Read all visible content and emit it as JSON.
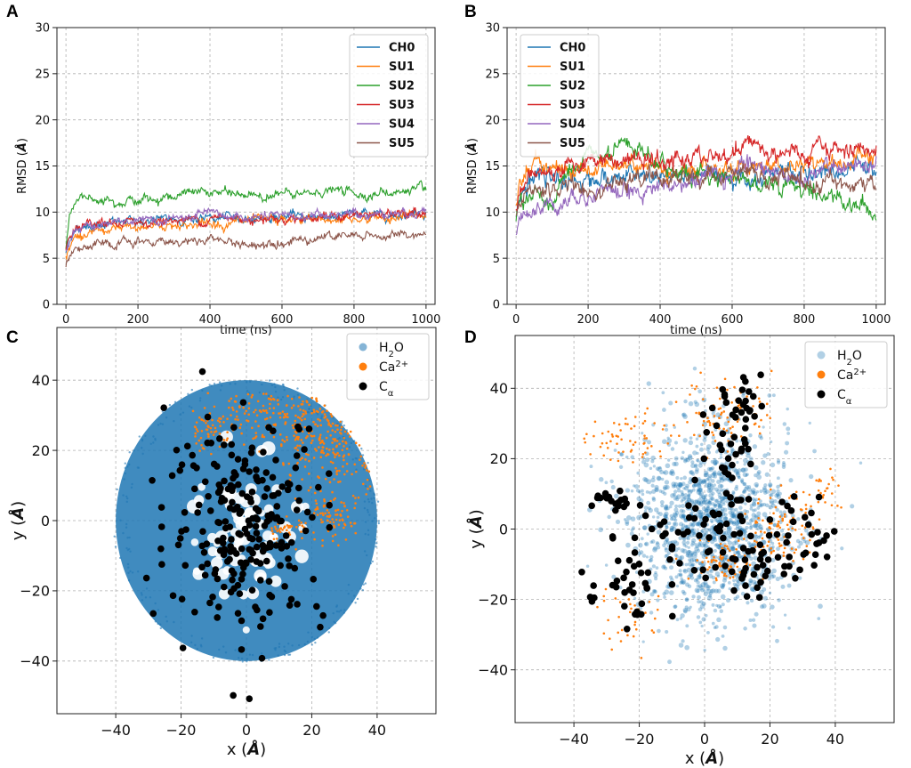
{
  "chart_data": [
    {
      "panel": "A",
      "type": "line",
      "title": "",
      "xlabel": "time (ns)",
      "ylabel": "RMSD (Å)",
      "ylabel_parts": [
        "RMSD (",
        "Å",
        ")"
      ],
      "xlim": [
        -25,
        1025
      ],
      "ylim": [
        0,
        30
      ],
      "xticks": [
        0,
        200,
        400,
        600,
        800,
        1000
      ],
      "yticks": [
        0,
        5,
        10,
        15,
        20,
        25,
        30
      ],
      "legend_position": "top-right",
      "x": [
        0,
        10,
        25,
        50,
        100,
        150,
        200,
        250,
        300,
        350,
        400,
        450,
        500,
        550,
        600,
        650,
        700,
        750,
        800,
        850,
        900,
        950,
        1000
      ],
      "series": [
        {
          "name": "CH0",
          "color": "#1f77b4",
          "values": [
            5.5,
            7.5,
            8.0,
            8.5,
            8.8,
            8.9,
            9.0,
            9.1,
            9.2,
            9.3,
            9.3,
            9.3,
            9.4,
            9.4,
            9.5,
            9.5,
            9.6,
            9.6,
            9.7,
            9.8,
            9.8,
            9.9,
            10.0
          ]
        },
        {
          "name": "SU1",
          "color": "#ff7f0e",
          "values": [
            5.0,
            6.5,
            7.2,
            7.5,
            7.8,
            8.1,
            8.3,
            8.5,
            8.6,
            8.7,
            8.8,
            8.8,
            8.9,
            9.0,
            9.0,
            9.1,
            9.2,
            9.2,
            9.3,
            9.4,
            9.4,
            9.5,
            9.5
          ]
        },
        {
          "name": "SU2",
          "color": "#2ca02c",
          "values": [
            6.5,
            10.0,
            11.0,
            11.5,
            11.6,
            11.4,
            11.2,
            11.5,
            11.8,
            12.0,
            12.2,
            12.0,
            11.8,
            11.9,
            12.0,
            11.7,
            12.2,
            12.4,
            12.0,
            11.9,
            12.1,
            12.3,
            12.4
          ]
        },
        {
          "name": "SU3",
          "color": "#d62728",
          "values": [
            5.5,
            7.0,
            7.8,
            8.3,
            8.6,
            8.8,
            8.9,
            9.0,
            9.1,
            9.2,
            9.3,
            9.3,
            9.3,
            9.4,
            9.3,
            9.4,
            9.5,
            9.5,
            9.6,
            9.6,
            9.7,
            9.8,
            9.8
          ]
        },
        {
          "name": "SU4",
          "color": "#9467bd",
          "values": [
            5.8,
            7.2,
            8.0,
            8.5,
            8.7,
            8.8,
            8.9,
            9.1,
            9.2,
            9.4,
            9.6,
            9.5,
            9.4,
            9.4,
            9.5,
            9.5,
            9.6,
            9.7,
            9.8,
            9.9,
            9.9,
            10.0,
            10.2
          ]
        },
        {
          "name": "SU5",
          "color": "#8c564b",
          "values": [
            4.2,
            5.5,
            5.9,
            6.1,
            6.3,
            6.5,
            6.6,
            6.7,
            6.9,
            6.9,
            7.0,
            6.9,
            6.3,
            6.6,
            7.0,
            7.1,
            7.3,
            7.4,
            7.3,
            7.4,
            7.4,
            7.5,
            7.6
          ]
        }
      ]
    },
    {
      "panel": "B",
      "type": "line",
      "title": "",
      "xlabel": "time (ns)",
      "ylabel": "RMSD (Å)",
      "ylabel_parts": [
        "RMSD (",
        "Å",
        ")"
      ],
      "xlim": [
        -25,
        1025
      ],
      "ylim": [
        0,
        30
      ],
      "xticks": [
        0,
        200,
        400,
        600,
        800,
        1000
      ],
      "yticks": [
        0,
        5,
        10,
        15,
        20,
        25,
        30
      ],
      "legend_position": "top-left",
      "x": [
        0,
        10,
        25,
        50,
        100,
        150,
        200,
        250,
        300,
        350,
        400,
        450,
        500,
        550,
        600,
        650,
        700,
        750,
        800,
        850,
        900,
        950,
        1000
      ],
      "series": [
        {
          "name": "CH0",
          "color": "#1f77b4",
          "values": [
            10.0,
            11.8,
            12.8,
            13.3,
            13.4,
            13.5,
            13.6,
            13.7,
            13.7,
            13.8,
            13.8,
            13.9,
            13.9,
            13.9,
            14.0,
            14.0,
            14.1,
            14.1,
            14.2,
            14.2,
            14.3,
            14.3,
            14.5
          ]
        },
        {
          "name": "SU1",
          "color": "#ff7f0e",
          "values": [
            10.0,
            13.0,
            14.5,
            15.5,
            15.0,
            14.5,
            14.5,
            15.0,
            15.5,
            15.2,
            14.8,
            14.6,
            14.7,
            14.8,
            14.9,
            15.0,
            15.0,
            15.1,
            15.2,
            15.3,
            15.4,
            15.6,
            15.8
          ]
        },
        {
          "name": "SU2",
          "color": "#2ca02c",
          "values": [
            9.5,
            11.5,
            11.0,
            11.5,
            11.0,
            14.5,
            15.5,
            16.0,
            17.0,
            16.0,
            15.0,
            14.5,
            14.3,
            14.0,
            13.8,
            13.5,
            13.3,
            13.0,
            12.5,
            12.0,
            11.5,
            11.0,
            10.2
          ]
        },
        {
          "name": "SU3",
          "color": "#d62728",
          "values": [
            10.0,
            11.5,
            13.0,
            14.0,
            14.5,
            15.5,
            15.6,
            15.5,
            15.5,
            15.8,
            15.2,
            15.5,
            15.8,
            16.0,
            16.2,
            18.0,
            16.5,
            16.3,
            16.0,
            16.5,
            16.8,
            17.0,
            17.2
          ]
        },
        {
          "name": "SU4",
          "color": "#9467bd",
          "values": [
            7.5,
            8.5,
            9.5,
            10.5,
            11.0,
            11.5,
            12.0,
            12.3,
            12.5,
            12.5,
            12.8,
            13.0,
            13.5,
            14.2,
            14.5,
            14.6,
            14.2,
            14.0,
            14.3,
            14.3,
            14.4,
            14.6,
            14.6
          ]
        },
        {
          "name": "SU5",
          "color": "#8c564b",
          "values": [
            9.5,
            10.5,
            11.5,
            12.0,
            12.5,
            12.8,
            13.0,
            13.2,
            13.4,
            13.5,
            13.6,
            13.7,
            13.8,
            13.8,
            13.9,
            13.9,
            13.8,
            13.5,
            13.3,
            13.2,
            13.1,
            13.0,
            12.8
          ]
        }
      ]
    },
    {
      "panel": "C",
      "type": "scatter",
      "title": "",
      "xlabel": "x (Å)",
      "ylabel": "y (Å)",
      "xlabel_parts": [
        "x (",
        "Å",
        ")"
      ],
      "ylabel_parts": [
        "y (",
        "Å",
        ")"
      ],
      "xlim": [
        -58,
        58
      ],
      "ylim": [
        -55,
        55
      ],
      "xticks": [
        -40,
        -20,
        0,
        20,
        40
      ],
      "yticks": [
        -40,
        -20,
        0,
        20,
        40
      ],
      "legend_position": "top-right",
      "legend": [
        {
          "label": "H",
          "sub": "2",
          "rest": "O",
          "color": "#1f77b4",
          "alpha": 0.55
        },
        {
          "label": "Ca",
          "sup": "2+",
          "rest": "",
          "color": "#ff7f0e",
          "alpha": 1.0
        },
        {
          "label": "C",
          "sub": "α",
          "rest": "",
          "color": "#000000",
          "alpha": 1.0
        }
      ],
      "water_region": {
        "shape": "disk",
        "center": [
          0,
          0
        ],
        "radius": 40,
        "color": "#1f77b4",
        "voids_near_protein": true
      },
      "calcium_clusters": [
        {
          "center": [
            27,
            25
          ],
          "spread": [
            9,
            8
          ],
          "count": 320
        },
        {
          "center": [
            3,
            30
          ],
          "spread": [
            8,
            4
          ],
          "count": 120
        },
        {
          "center": [
            -12,
            26
          ],
          "spread": [
            3,
            3
          ],
          "count": 50
        },
        {
          "center": [
            25,
            0
          ],
          "spread": [
            4,
            3
          ],
          "count": 80
        },
        {
          "center": [
            12,
            -3
          ],
          "spread": [
            3,
            2
          ],
          "count": 40
        }
      ],
      "calpha_region": {
        "center": [
          0,
          0
        ],
        "spread": [
          12,
          15
        ],
        "count": 240,
        "color": "#000000"
      }
    },
    {
      "panel": "D",
      "type": "scatter",
      "title": "",
      "xlabel": "x (Å)",
      "ylabel": "y (Å)",
      "xlabel_parts": [
        "x (",
        "Å",
        ")"
      ],
      "ylabel_parts": [
        "y (",
        "Å",
        ")"
      ],
      "xlim": [
        -58,
        58
      ],
      "ylim": [
        -55,
        55
      ],
      "xticks": [
        -40,
        -20,
        0,
        20,
        40
      ],
      "yticks": [
        -40,
        -20,
        0,
        20,
        40
      ],
      "legend_position": "top-right",
      "legend": [
        {
          "label": "H",
          "sub": "2",
          "rest": "O",
          "color": "#1f77b4",
          "alpha": 0.35
        },
        {
          "label": "Ca",
          "sup": "2+",
          "rest": "",
          "color": "#ff7f0e",
          "alpha": 1.0
        },
        {
          "label": "C",
          "sub": "α",
          "rest": "",
          "color": "#000000",
          "alpha": 1.0
        }
      ],
      "water_region": {
        "shape": "blob",
        "center": [
          2,
          2
        ],
        "radius": 22,
        "color": "#1f77b4"
      },
      "calcium_clusters": [
        {
          "center": [
            -23,
            26
          ],
          "spread": [
            6,
            4
          ],
          "count": 60
        },
        {
          "center": [
            7,
            33
          ],
          "spread": [
            7,
            5
          ],
          "count": 90
        },
        {
          "center": [
            24,
            0
          ],
          "spread": [
            5,
            5
          ],
          "count": 100
        },
        {
          "center": [
            6,
            -9
          ],
          "spread": [
            5,
            3
          ],
          "count": 70
        },
        {
          "center": [
            36,
            10
          ],
          "spread": [
            3,
            3
          ],
          "count": 30
        },
        {
          "center": [
            -22,
            -25
          ],
          "spread": [
            5,
            5
          ],
          "count": 35
        }
      ],
      "calpha_groups": [
        {
          "center": [
            -28,
            8
          ],
          "spread": [
            3,
            1.5
          ],
          "count": 18
        },
        {
          "center": [
            -22,
            -18
          ],
          "spread": [
            4,
            5
          ],
          "count": 25
        },
        {
          "center": [
            10,
            35
          ],
          "spread": [
            5,
            4
          ],
          "count": 25
        },
        {
          "center": [
            8,
            22
          ],
          "spread": [
            4,
            6
          ],
          "count": 22
        },
        {
          "center": [
            0,
            -2
          ],
          "spread": [
            12,
            8
          ],
          "count": 70
        },
        {
          "center": [
            13,
            -15
          ],
          "spread": [
            3,
            5
          ],
          "count": 20
        },
        {
          "center": [
            27,
            -5
          ],
          "spread": [
            4,
            7
          ],
          "count": 25
        },
        {
          "center": [
            38,
            -4
          ],
          "spread": [
            3,
            2
          ],
          "count": 4
        },
        {
          "center": [
            -35,
            -17
          ],
          "spread": [
            1,
            3
          ],
          "count": 5
        }
      ]
    }
  ]
}
